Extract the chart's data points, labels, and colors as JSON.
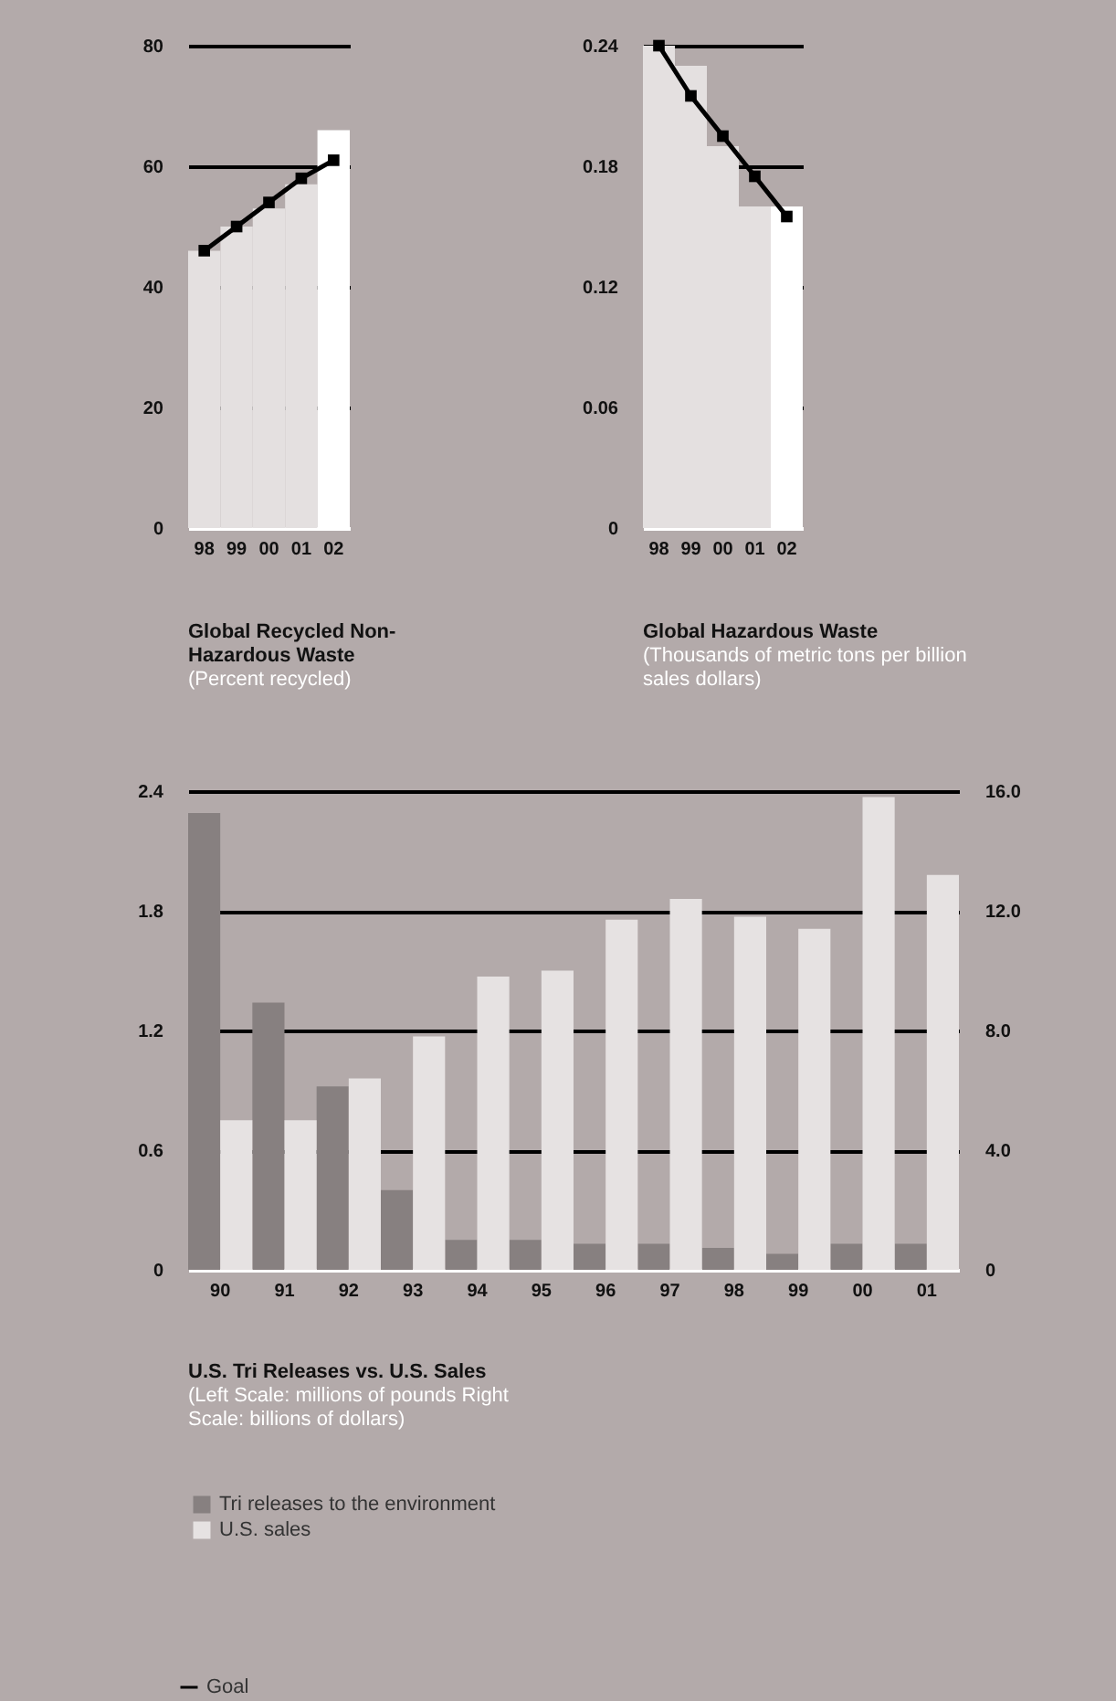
{
  "chart_data": [
    {
      "type": "bar",
      "title": "Global Recycled Non-Hazardous Waste",
      "subtitle": "(Percent recycled)",
      "categories": [
        "98",
        "99",
        "00",
        "01",
        "02"
      ],
      "series": [
        {
          "type": "bar",
          "colors": [
            "#e4e0e0",
            "#e4e0e0",
            "#e4e0e0",
            "#e4e0e0",
            "#ffffff"
          ],
          "values": [
            46,
            50,
            53,
            57,
            66
          ]
        },
        {
          "type": "line",
          "name": "Goal",
          "color": "#000000",
          "values": [
            46,
            50,
            54,
            58,
            61
          ]
        }
      ],
      "ylim": [
        0,
        80
      ],
      "yticks": [
        0,
        20,
        40,
        60,
        80
      ],
      "grid": "y",
      "marker": "square",
      "legend": "bottom left"
    },
    {
      "type": "bar",
      "title": "Global Hazardous Waste",
      "subtitle": "(Thousands of metric tons per billion sales dollars)",
      "categories": [
        "98",
        "99",
        "00",
        "01",
        "02"
      ],
      "series": [
        {
          "type": "bar",
          "colors": [
            "#e4e0e0",
            "#e4e0e0",
            "#e4e0e0",
            "#e4e0e0",
            "#ffffff"
          ],
          "values": [
            0.24,
            0.23,
            0.19,
            0.16,
            0.16
          ]
        },
        {
          "type": "line",
          "color": "#000000",
          "values": [
            0.24,
            0.215,
            0.195,
            0.175,
            0.155
          ]
        }
      ],
      "ylim": [
        0,
        0.24
      ],
      "yticks": [
        0,
        0.06,
        0.12,
        0.18,
        0.24
      ],
      "grid": "y",
      "marker": "square"
    },
    {
      "type": "bar",
      "title": "U.S. Tri Releases vs. U.S. Sales",
      "subtitle": "(Left Scale: millions of pounds Right Scale: billions of dollars)",
      "categories": [
        "90",
        "91",
        "92",
        "93",
        "94",
        "95",
        "96",
        "97",
        "98",
        "99",
        "00",
        "01"
      ],
      "series": [
        {
          "name": "Tri releases to the environment",
          "color": "#878080",
          "values": [
            2.29,
            1.34,
            0.92,
            0.4,
            0.15,
            0.15,
            0.13,
            0.13,
            0.11,
            0.08,
            0.13,
            0.13
          ]
        },
        {
          "name": "U.S. sales",
          "color": "#e6e2e2",
          "axis": "y2",
          "values": [
            5.0,
            5.0,
            6.4,
            7.8,
            9.8,
            10.0,
            11.7,
            12.4,
            11.8,
            11.4,
            15.8,
            13.2
          ]
        }
      ],
      "ylim": [
        0,
        2.4
      ],
      "yticks": [
        0,
        0.6,
        1.2,
        1.8,
        2.4
      ],
      "y2lim": [
        0,
        16
      ],
      "y2ticks": [
        0,
        {
          "value": 4,
          "label": "4.0"
        },
        {
          "value": 8,
          "label": "8.0"
        },
        {
          "value": 12,
          "label": "12.0"
        },
        {
          "value": 16,
          "label": "16.0"
        }
      ],
      "grid": "y",
      "legend": "bottom left"
    }
  ]
}
